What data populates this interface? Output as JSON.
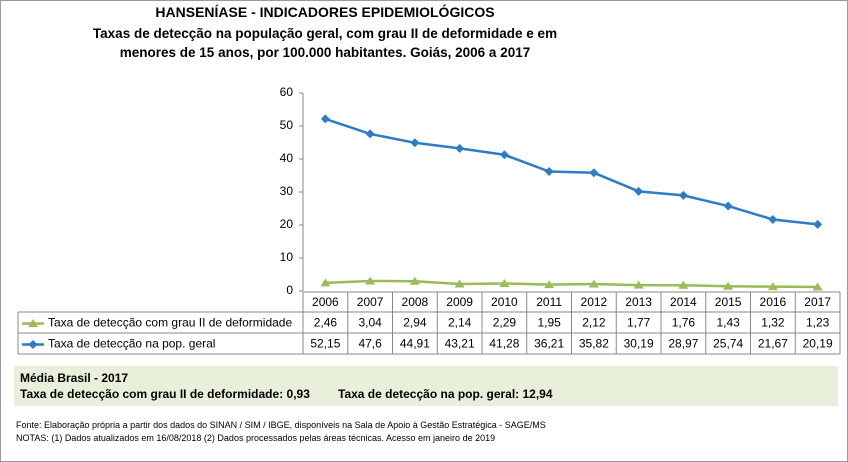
{
  "chart_data": {
    "type": "line",
    "title": "HANSENÍASE - INDICADORES EPIDEMIOLÓGICOS",
    "subtitle": "Taxas de detecção na população geral, com grau II de deformidade e em menores de 15 anos, por 100.000 habitantes. Goiás, 2006 a 2017",
    "categories": [
      "2006",
      "2007",
      "2008",
      "2009",
      "2010",
      "2011",
      "2012",
      "2013",
      "2014",
      "2015",
      "2016",
      "2017"
    ],
    "series": [
      {
        "name": "Taxa de detecção com grau II de deformidade",
        "color": "#9bbb59",
        "marker": "triangle",
        "values": [
          2.46,
          3.04,
          2.94,
          2.14,
          2.29,
          1.95,
          2.12,
          1.77,
          1.76,
          1.43,
          1.32,
          1.23
        ],
        "value_labels": [
          "2,46",
          "3,04",
          "2,94",
          "2,14",
          "2,29",
          "1,95",
          "2,12",
          "1,77",
          "1,76",
          "1,43",
          "1,32",
          "1,23"
        ]
      },
      {
        "name": "Taxa de detecção na pop. geral",
        "color": "#2e7cc4",
        "marker": "diamond",
        "values": [
          52.15,
          47.6,
          44.91,
          43.21,
          41.28,
          36.21,
          35.82,
          30.19,
          28.97,
          25.74,
          21.67,
          20.19
        ],
        "value_labels": [
          "52,15",
          "47,6",
          "44,91",
          "43,21",
          "41,28",
          "36,21",
          "35,82",
          "30,19",
          "28,97",
          "25,74",
          "21,67",
          "20,19"
        ]
      }
    ],
    "ylim": [
      0,
      60
    ],
    "yticks": [
      0,
      10,
      20,
      30,
      40,
      50,
      60
    ],
    "grid": false
  },
  "summary": {
    "title": "Média Brasil - 2017",
    "items": [
      "Taxa de detecção com grau II de deformidade: 0,93",
      "Taxa de detecção na pop. geral: 12,94"
    ]
  },
  "notes": [
    "Fonte:  Elaboração própria a partir dos dados do  SINAN / SIM / IBGE, disponíveis na Sala de Apoio à Gestão Estratégica -  SAGE/MS",
    "NOTAS: (1) Dados atualizados em 16/08/2018 (2) Dados processados pelas áreas técnicas. Acesso em janeiro de 2019"
  ]
}
